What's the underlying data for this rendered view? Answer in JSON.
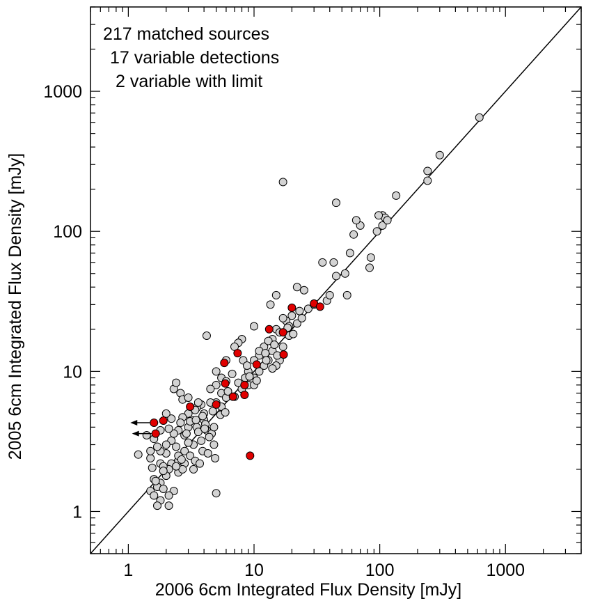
{
  "chart_data": {
    "type": "scatter",
    "xlabel": "2006 6cm Integrated Flux Density [mJy]",
    "ylabel": "2005 6cm Integrated Flux Density [mJy]",
    "x_scale": "log",
    "y_scale": "log",
    "xlim": [
      0.5,
      4000
    ],
    "ylim": [
      0.5,
      4000
    ],
    "x_ticks": [
      "1",
      "10",
      "100",
      "1000"
    ],
    "y_ticks": [
      "1",
      "10",
      "100",
      "1000"
    ],
    "grid": false,
    "annotations": [
      "217 matched sources",
      "17 variable detections",
      "2 variable with limit"
    ],
    "colors": {
      "matched": "#d3d3d3",
      "variable": "#e00000",
      "edge": "#000000"
    },
    "reference_line": {
      "x": [
        0.5,
        4000
      ],
      "y": [
        0.5,
        4000
      ]
    },
    "series": [
      {
        "points": [
          [
            620,
            650
          ],
          [
            300,
            350
          ],
          [
            240,
            270
          ],
          [
            240,
            230
          ],
          [
            135,
            180
          ],
          [
            105,
            130
          ],
          [
            110,
            125
          ],
          [
            98,
            130
          ],
          [
            95,
            100
          ],
          [
            105,
            110
          ],
          [
            115,
            120
          ],
          [
            70,
            110
          ],
          [
            65,
            120
          ],
          [
            62,
            95
          ],
          [
            58,
            70
          ],
          [
            85,
            65
          ],
          [
            83,
            55
          ],
          [
            53,
            50
          ],
          [
            55,
            35
          ],
          [
            45,
            160
          ],
          [
            43,
            60
          ],
          [
            35,
            60
          ],
          [
            45,
            48
          ],
          [
            38,
            32
          ],
          [
            40,
            35
          ],
          [
            25,
            38
          ],
          [
            22,
            40
          ],
          [
            27,
            28
          ],
          [
            17,
            225
          ],
          [
            15,
            35
          ],
          [
            13.5,
            30
          ],
          [
            20,
            25
          ],
          [
            18,
            23
          ],
          [
            22,
            22
          ],
          [
            15,
            20
          ],
          [
            16,
            19
          ],
          [
            19,
            21
          ],
          [
            14,
            17
          ],
          [
            17,
            15
          ],
          [
            19,
            18
          ],
          [
            12,
            15
          ],
          [
            14,
            14
          ],
          [
            11,
            13
          ],
          [
            13,
            12
          ],
          [
            16,
            12
          ],
          [
            15,
            11
          ],
          [
            10,
            12
          ],
          [
            12,
            11
          ],
          [
            14,
            10.5
          ],
          [
            11,
            10
          ],
          [
            9,
            10
          ],
          [
            10,
            9
          ],
          [
            8.5,
            9
          ],
          [
            9.5,
            8.5
          ],
          [
            9,
            8
          ],
          [
            10,
            8
          ],
          [
            8,
            7.5
          ],
          [
            10,
            21
          ],
          [
            8,
            17
          ],
          [
            7.5,
            16
          ],
          [
            7,
            15
          ],
          [
            6,
            12
          ],
          [
            5,
            10
          ],
          [
            5.5,
            9
          ],
          [
            6,
            8.5
          ],
          [
            5,
            8
          ],
          [
            4.5,
            7.5
          ],
          [
            5.5,
            7
          ],
          [
            6,
            6.5
          ],
          [
            5,
            6
          ],
          [
            4.2,
            18
          ],
          [
            4.5,
            6
          ],
          [
            3.8,
            5.8
          ],
          [
            4,
            5
          ],
          [
            3.5,
            5.5
          ],
          [
            3,
            5
          ],
          [
            3.2,
            4.5
          ],
          [
            2.7,
            4.7
          ],
          [
            3.5,
            4
          ],
          [
            4,
            4.5
          ],
          [
            3,
            4
          ],
          [
            2.5,
            3.8
          ],
          [
            2.8,
            3.5
          ],
          [
            3.8,
            3.2
          ],
          [
            4.2,
            3.8
          ],
          [
            4.6,
            3.6
          ],
          [
            3.3,
            3
          ],
          [
            2.2,
            3.2
          ],
          [
            2,
            3
          ],
          [
            2.4,
            2.9
          ],
          [
            2.8,
            2.7
          ],
          [
            3.1,
            2.5
          ],
          [
            2.5,
            2.3
          ],
          [
            2,
            2.6
          ],
          [
            1.8,
            2.7
          ],
          [
            2.2,
            2.2
          ],
          [
            1.8,
            2.2
          ],
          [
            2.8,
            2.2
          ],
          [
            3.4,
            2.3
          ],
          [
            1.5,
            2.4
          ],
          [
            2.1,
            2
          ],
          [
            2.5,
            1.9
          ],
          [
            2,
            1.8
          ],
          [
            1.6,
            1.7
          ],
          [
            1.8,
            1.6
          ],
          [
            1.7,
            1.5
          ],
          [
            1.5,
            1.4
          ],
          [
            1.9,
            1.45
          ],
          [
            2.3,
            1.4
          ],
          [
            1.6,
            1.3
          ],
          [
            2.1,
            1.3
          ],
          [
            1.8,
            1.2
          ],
          [
            2.1,
            1.1
          ],
          [
            1.7,
            1.1
          ],
          [
            5,
            1.35
          ],
          [
            1.2,
            2.55
          ],
          [
            1.4,
            3.5
          ],
          [
            1.5,
            2.7
          ],
          [
            1.6,
            3.3
          ],
          [
            1.7,
            2.9
          ],
          [
            1.8,
            3.8
          ],
          [
            2.3,
            7.5
          ],
          [
            2.6,
            7
          ],
          [
            2.4,
            8.3
          ],
          [
            2.7,
            6.3
          ],
          [
            3,
            6.5
          ],
          [
            3.6,
            6
          ],
          [
            3.4,
            5.3
          ],
          [
            3.9,
            4.8
          ],
          [
            4.1,
            4.2
          ],
          [
            4.4,
            3.4
          ],
          [
            4.8,
            3
          ],
          [
            4.8,
            4
          ],
          [
            3.7,
            2.2
          ],
          [
            3.9,
            2.7
          ],
          [
            4.3,
            2.6
          ],
          [
            4.9,
            2.4
          ],
          [
            2.3,
            3.6
          ],
          [
            2.6,
            4.3
          ],
          [
            2.9,
            3.6
          ],
          [
            3.1,
            4.4
          ],
          [
            2.2,
            4.6
          ],
          [
            2,
            5
          ],
          [
            3.3,
            2
          ],
          [
            2.7,
            2
          ],
          [
            1.9,
            2.1
          ],
          [
            2.5,
            2.5
          ],
          [
            3.6,
            3.7
          ],
          [
            4.7,
            5.2
          ],
          [
            5.5,
            5.6
          ],
          [
            6.2,
            7.2
          ],
          [
            7,
            6.6
          ],
          [
            6.7,
            9.6
          ],
          [
            7.5,
            8.3
          ],
          [
            8.2,
            12
          ],
          [
            8.8,
            11
          ],
          [
            9.2,
            9.2
          ],
          [
            11,
            14
          ],
          [
            12.3,
            13.5
          ],
          [
            13,
            16.5
          ],
          [
            14.5,
            15.5
          ],
          [
            15.3,
            13
          ],
          [
            12.5,
            12
          ],
          [
            17,
            24
          ],
          [
            18.5,
            20.5
          ],
          [
            20.5,
            18.5
          ],
          [
            24,
            24
          ],
          [
            30,
            30
          ],
          [
            23,
            27
          ],
          [
            10.5,
            8.6
          ],
          [
            5.4,
            4.9
          ],
          [
            5.9,
            5.1
          ],
          [
            2.4,
            2.1
          ],
          [
            3,
            3.1
          ],
          [
            2.1,
            3.9
          ],
          [
            1.9,
            1.95
          ],
          [
            1.65,
            1.65
          ],
          [
            1.55,
            2.05
          ],
          [
            2.65,
            2.35
          ],
          [
            3.45,
            4.5
          ],
          [
            4.05,
            3.9
          ]
        ]
      },
      {
        "points": [
          [
            1.6,
            4.3
          ],
          [
            1.9,
            4.45
          ],
          [
            1.65,
            3.6
          ],
          [
            3.1,
            5.6
          ],
          [
            5.8,
            11.5
          ],
          [
            5,
            5.8
          ],
          [
            5.9,
            8.2
          ],
          [
            6.8,
            6.6
          ],
          [
            7.4,
            13.5
          ],
          [
            8.4,
            8
          ],
          [
            8.4,
            6.8
          ],
          [
            10.5,
            11.2
          ],
          [
            9.3,
            2.5
          ],
          [
            13.2,
            20
          ],
          [
            17,
            19
          ],
          [
            17.2,
            13.2
          ],
          [
            20,
            28.5
          ],
          [
            30,
            30.5
          ],
          [
            33.5,
            29
          ]
        ]
      }
    ]
  }
}
